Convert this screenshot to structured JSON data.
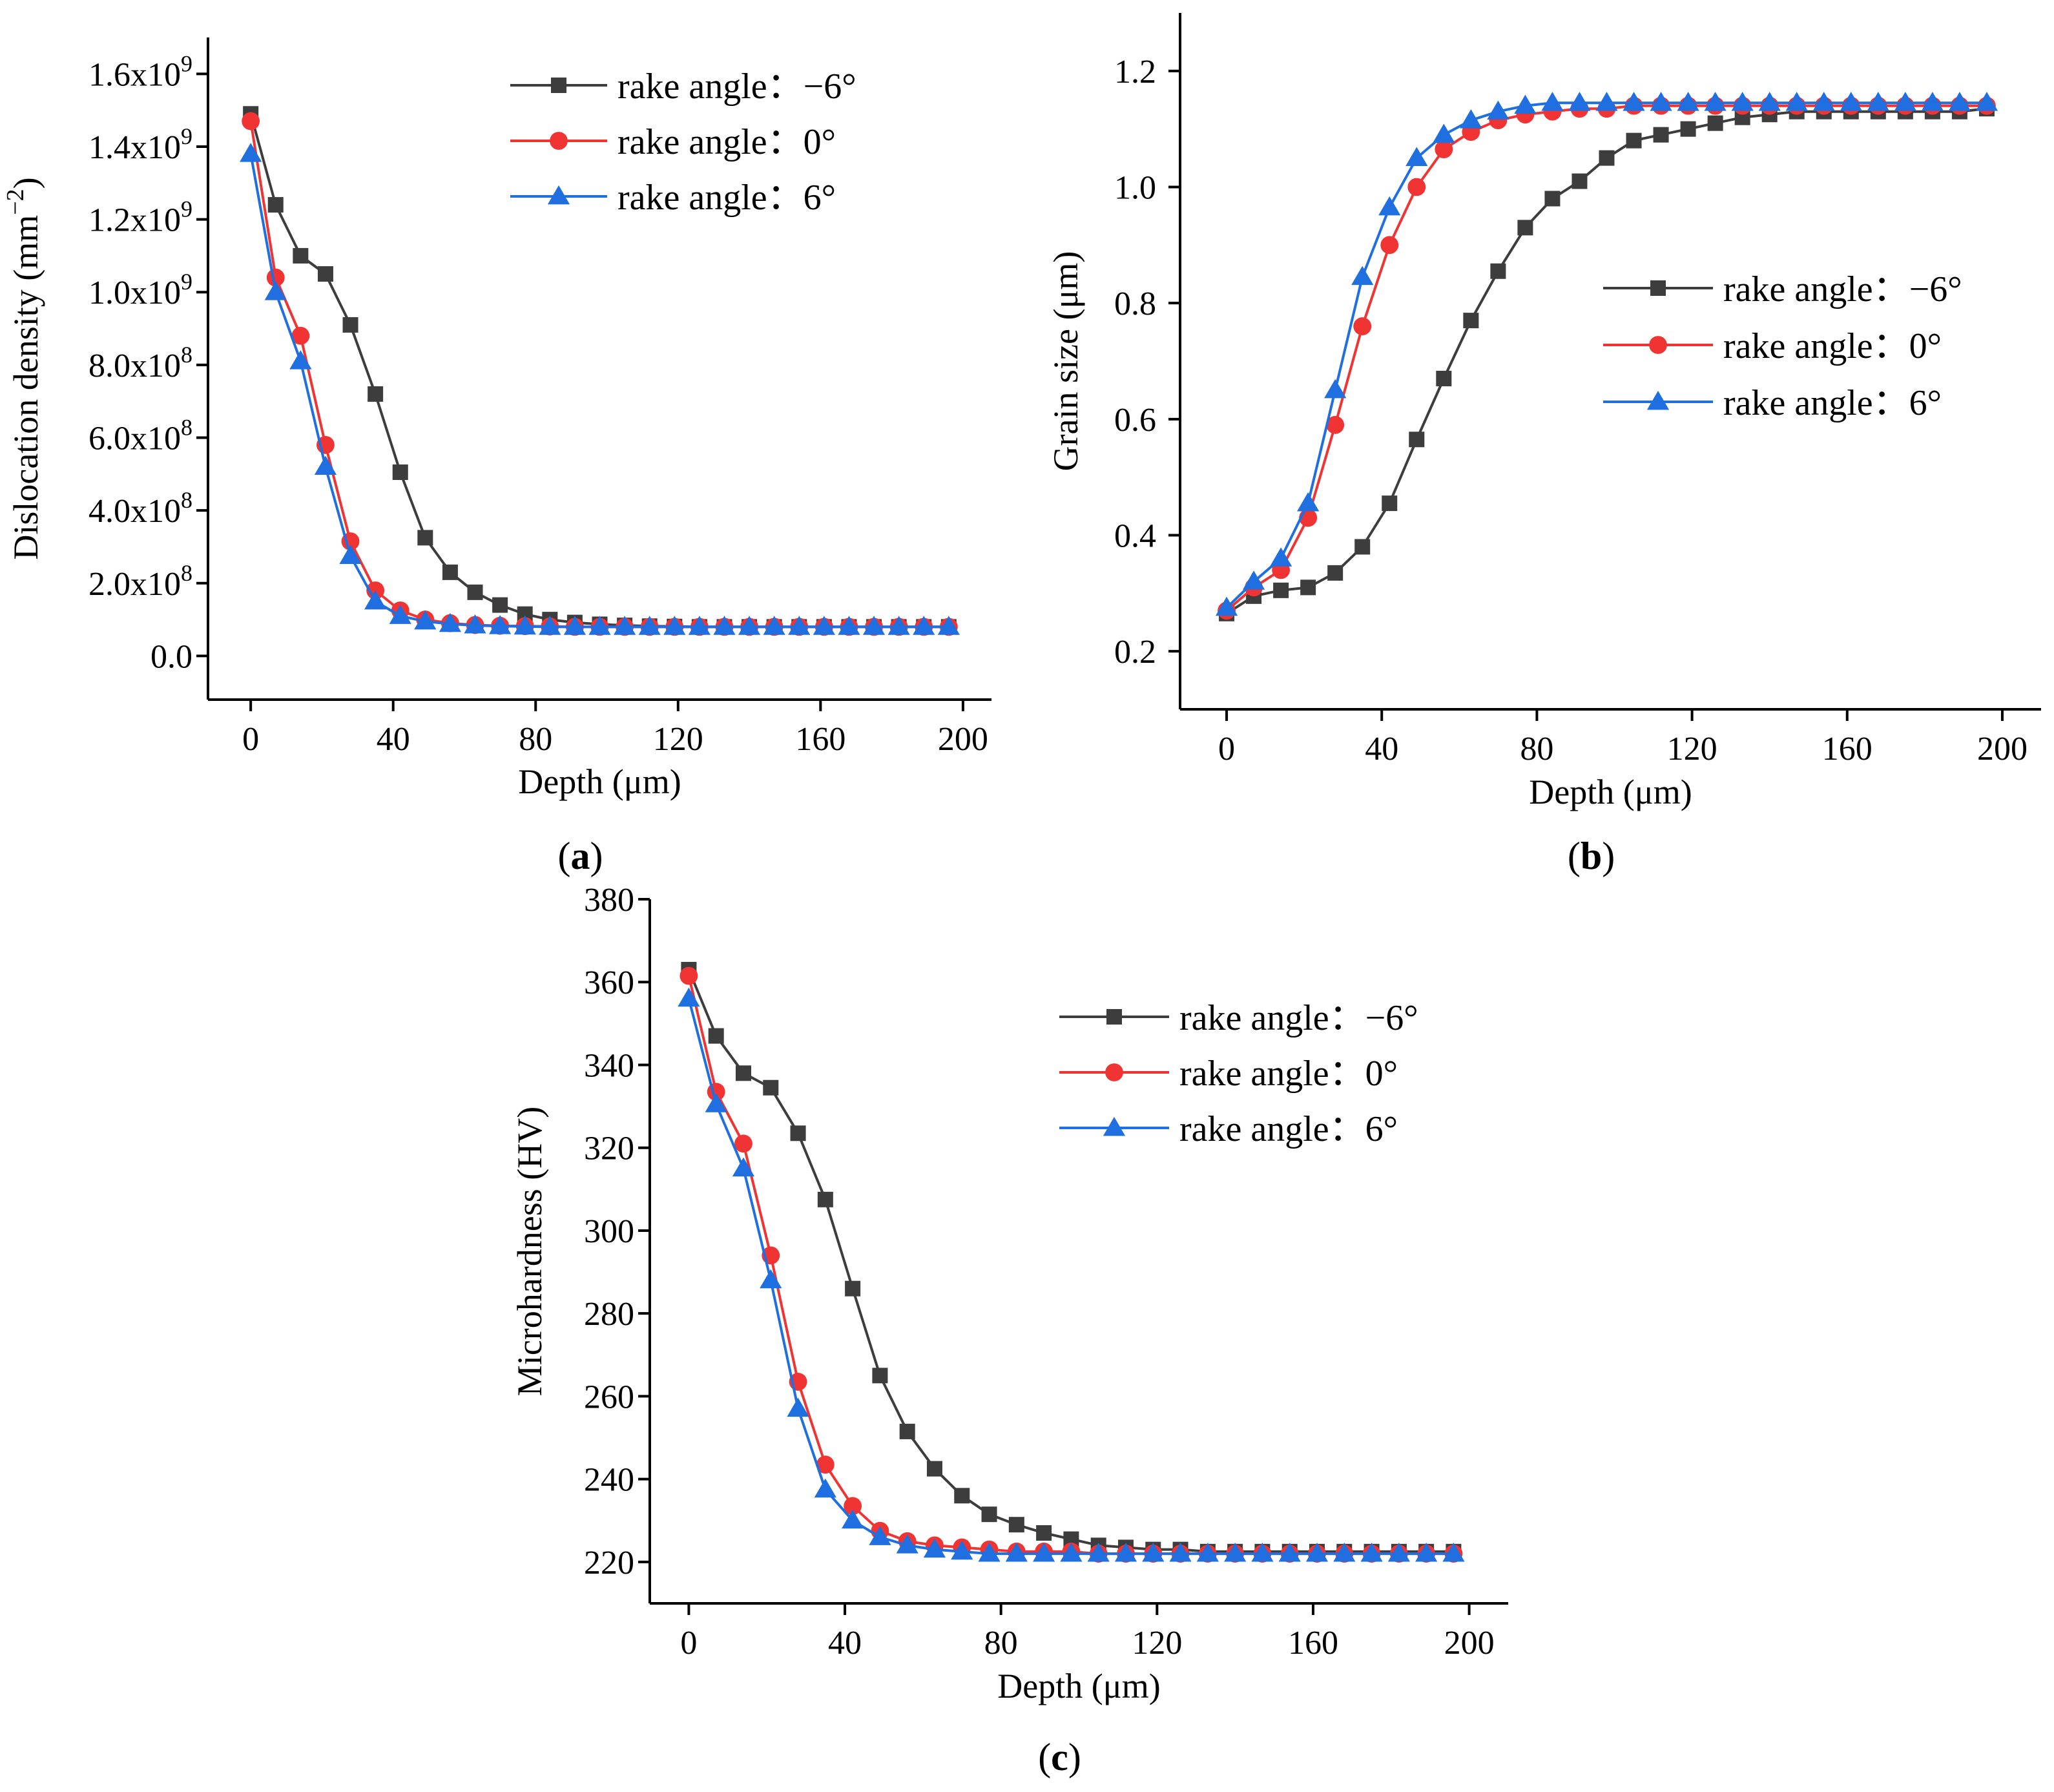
{
  "colors": {
    "neg6": "#3d3d3d",
    "zero": "#f03333",
    "pos6": "#1f6fe0",
    "axis": "#000000"
  },
  "chart_data": [
    {
      "id": "a",
      "type": "line",
      "panel_label": "a",
      "xlabel": "Depth (μm)",
      "ylabel": "Dislocation density (mm",
      "ylabel_sup": "−2",
      "ylabel_close": ")",
      "xlim": [
        -12,
        208
      ],
      "ylim": [
        -120000000.0,
        1700000000.0
      ],
      "xticks": [
        0,
        40,
        80,
        120,
        160,
        200
      ],
      "yticks": [
        0,
        200000000.0,
        400000000.0,
        600000000.0,
        800000000.0,
        1000000000.0,
        1200000000.0,
        1400000000.0,
        1600000000.0
      ],
      "ytick_labels": [
        {
          "base": "0.0",
          "exp": ""
        },
        {
          "base": "2.0x10",
          "exp": "8"
        },
        {
          "base": "4.0x10",
          "exp": "8"
        },
        {
          "base": "6.0x10",
          "exp": "8"
        },
        {
          "base": "8.0x10",
          "exp": "8"
        },
        {
          "base": "1.0x10",
          "exp": "9"
        },
        {
          "base": "1.2x10",
          "exp": "9"
        },
        {
          "base": "1.4x10",
          "exp": "9"
        },
        {
          "base": "1.6x10",
          "exp": "9"
        }
      ],
      "legend_position": "top-right",
      "x": [
        0,
        7,
        14,
        21,
        28,
        35,
        42,
        49,
        56,
        63,
        70,
        77,
        84,
        91,
        98,
        105,
        112,
        119,
        126,
        133,
        140,
        147,
        154,
        161,
        168,
        175,
        182,
        189,
        196
      ],
      "series": [
        {
          "name": "rake angle：−6°",
          "marker": "square",
          "color_key": "neg6",
          "values": [
            1490000000,
            1240000000,
            1100000000,
            1050000000,
            910000000,
            720000000,
            505000000,
            325000000,
            230000000,
            175000000,
            140000000,
            115000000,
            100000000,
            92000000,
            87000000,
            84000000,
            82000000,
            81000000,
            80000000,
            80000000,
            80000000,
            80000000,
            80000000,
            80000000,
            80000000,
            80000000,
            80000000,
            80000000,
            80000000
          ]
        },
        {
          "name": "rake angle：0°",
          "marker": "circle",
          "color_key": "zero",
          "values": [
            1470000000,
            1040000000,
            880000000,
            580000000,
            315000000,
            180000000,
            125000000,
            100000000,
            90000000,
            85000000,
            83000000,
            82000000,
            81000000,
            80000000,
            80000000,
            80000000,
            80000000,
            80000000,
            80000000,
            80000000,
            80000000,
            80000000,
            80000000,
            80000000,
            80000000,
            80000000,
            80000000,
            80000000,
            80000000
          ]
        },
        {
          "name": "rake angle：6°",
          "marker": "triangle",
          "color_key": "pos6",
          "values": [
            1380000000,
            1000000000,
            810000000,
            520000000,
            275000000,
            150000000,
            110000000,
            95000000,
            88000000,
            84000000,
            82000000,
            81000000,
            80000000,
            80000000,
            80000000,
            80000000,
            80000000,
            80000000,
            80000000,
            80000000,
            80000000,
            80000000,
            80000000,
            80000000,
            80000000,
            80000000,
            80000000,
            80000000,
            80000000
          ]
        }
      ]
    },
    {
      "id": "b",
      "type": "line",
      "panel_label": "b",
      "xlabel": "Depth (μm)",
      "ylabel": "Grain size (μm)",
      "ylabel_sup": "",
      "ylabel_close": "",
      "xlim": [
        -12,
        210
      ],
      "ylim": [
        0.1,
        1.3
      ],
      "xticks": [
        0,
        40,
        80,
        120,
        160,
        200
      ],
      "yticks": [
        0.2,
        0.4,
        0.6,
        0.8,
        1.0,
        1.2
      ],
      "ytick_labels": [
        {
          "base": "0.2",
          "exp": ""
        },
        {
          "base": "0.4",
          "exp": ""
        },
        {
          "base": "0.6",
          "exp": ""
        },
        {
          "base": "0.8",
          "exp": ""
        },
        {
          "base": "1.0",
          "exp": ""
        },
        {
          "base": "1.2",
          "exp": ""
        }
      ],
      "legend_position": "middle-right",
      "x": [
        0,
        7,
        14,
        21,
        28,
        35,
        42,
        49,
        56,
        63,
        70,
        77,
        84,
        91,
        98,
        105,
        112,
        119,
        126,
        133,
        140,
        147,
        154,
        161,
        168,
        175,
        182,
        189,
        196
      ],
      "series": [
        {
          "name": "rake angle：−6°",
          "marker": "square",
          "color_key": "neg6",
          "values": [
            0.265,
            0.295,
            0.305,
            0.31,
            0.335,
            0.38,
            0.455,
            0.565,
            0.67,
            0.77,
            0.855,
            0.93,
            0.98,
            1.01,
            1.05,
            1.08,
            1.09,
            1.1,
            1.11,
            1.12,
            1.125,
            1.13,
            1.13,
            1.13,
            1.13,
            1.13,
            1.13,
            1.13,
            1.135
          ]
        },
        {
          "name": "rake angle：0°",
          "marker": "circle",
          "color_key": "zero",
          "values": [
            0.27,
            0.31,
            0.34,
            0.43,
            0.59,
            0.76,
            0.9,
            1.0,
            1.065,
            1.095,
            1.115,
            1.125,
            1.13,
            1.135,
            1.135,
            1.14,
            1.14,
            1.14,
            1.14,
            1.14,
            1.14,
            1.14,
            1.14,
            1.14,
            1.14,
            1.14,
            1.14,
            1.14,
            1.14
          ]
        },
        {
          "name": "rake angle：6°",
          "marker": "triangle",
          "color_key": "pos6",
          "values": [
            0.275,
            0.32,
            0.36,
            0.455,
            0.65,
            0.845,
            0.965,
            1.05,
            1.09,
            1.115,
            1.13,
            1.14,
            1.145,
            1.145,
            1.145,
            1.145,
            1.145,
            1.145,
            1.145,
            1.145,
            1.145,
            1.145,
            1.145,
            1.145,
            1.145,
            1.145,
            1.145,
            1.145,
            1.145
          ]
        }
      ]
    },
    {
      "id": "c",
      "type": "line",
      "panel_label": "c",
      "xlabel": "Depth (μm)",
      "ylabel": "Microhardness (HV)",
      "ylabel_sup": "",
      "ylabel_close": "",
      "xlim": [
        -10,
        210
      ],
      "ylim": [
        210,
        380
      ],
      "xticks": [
        0,
        40,
        80,
        120,
        160,
        200
      ],
      "yticks": [
        220,
        240,
        260,
        280,
        300,
        320,
        340,
        360,
        380
      ],
      "ytick_labels": [
        {
          "base": "220",
          "exp": ""
        },
        {
          "base": "240",
          "exp": ""
        },
        {
          "base": "260",
          "exp": ""
        },
        {
          "base": "280",
          "exp": ""
        },
        {
          "base": "300",
          "exp": ""
        },
        {
          "base": "320",
          "exp": ""
        },
        {
          "base": "340",
          "exp": ""
        },
        {
          "base": "360",
          "exp": ""
        },
        {
          "base": "380",
          "exp": ""
        }
      ],
      "legend_position": "top-right",
      "x": [
        0,
        7,
        14,
        21,
        28,
        35,
        42,
        49,
        56,
        63,
        70,
        77,
        84,
        91,
        98,
        105,
        112,
        119,
        126,
        133,
        140,
        147,
        154,
        161,
        168,
        175,
        182,
        189,
        196
      ],
      "series": [
        {
          "name": "rake angle：−6°",
          "marker": "square",
          "color_key": "neg6",
          "values": [
            363,
            347,
            338,
            334.5,
            323.5,
            307.5,
            286,
            265,
            251.5,
            242.5,
            236,
            231.5,
            229,
            227,
            225.5,
            224,
            223.5,
            223,
            223,
            222.5,
            222.5,
            222.5,
            222.5,
            222.5,
            222.5,
            222.5,
            222.5,
            222.5,
            222.5
          ]
        },
        {
          "name": "rake angle：0°",
          "marker": "circle",
          "color_key": "zero",
          "values": [
            361.5,
            333.5,
            321,
            294,
            263.5,
            243.5,
            233.5,
            227.5,
            225,
            224,
            223.5,
            223,
            222.5,
            222.5,
            222.5,
            222,
            222,
            222,
            222,
            222,
            222,
            222,
            222,
            222,
            222,
            222,
            222,
            222,
            222
          ]
        },
        {
          "name": "rake angle：6°",
          "marker": "triangle",
          "color_key": "pos6",
          "values": [
            356,
            330.5,
            315,
            288,
            257,
            237.5,
            230,
            226,
            224,
            223,
            222.5,
            222,
            222,
            222,
            222,
            222,
            222,
            222,
            222,
            222,
            222,
            222,
            222,
            222,
            222,
            222,
            222,
            222,
            222
          ]
        }
      ]
    }
  ]
}
